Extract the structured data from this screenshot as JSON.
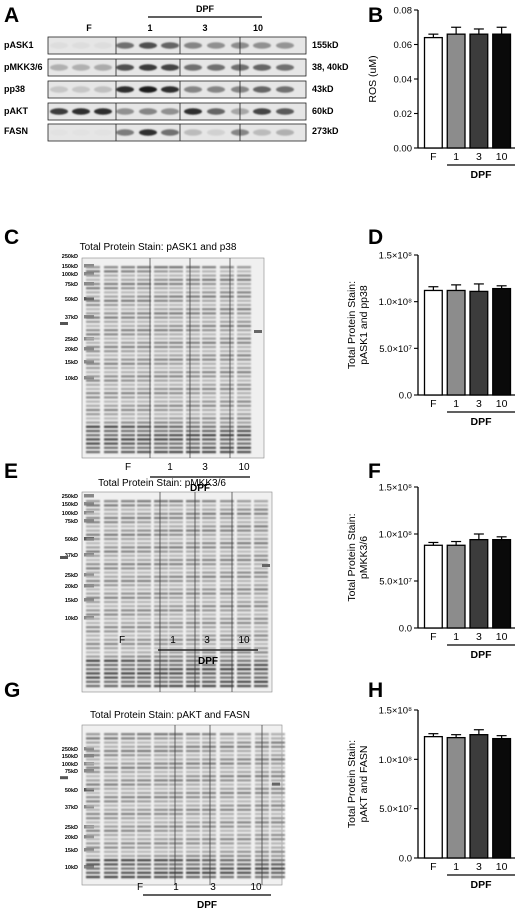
{
  "panel_letters": [
    "A",
    "B",
    "C",
    "D",
    "E",
    "F",
    "G",
    "H"
  ],
  "blot_a": {
    "group_header": "DPF",
    "lane_groups": [
      "F",
      "1",
      "3",
      "10"
    ],
    "rows": [
      {
        "label": "pASK1",
        "size": "155kD"
      },
      {
        "label": "pMKK3/6",
        "size": "38, 40kD"
      },
      {
        "label": "pp38",
        "size": "43kD"
      },
      {
        "label": "pAKT",
        "size": "60kD"
      },
      {
        "label": "FASN",
        "size": "273kD"
      }
    ]
  },
  "gels": [
    {
      "title": "Total Protein Stain: pASK1 and p38",
      "ladder": [
        "250kD",
        "150kD",
        "100kD",
        "75kD",
        "50kD",
        "37kD",
        "25kD",
        "20kD",
        "15kD",
        "10kD"
      ],
      "lane_labels": [
        "F",
        "1",
        "3",
        "10"
      ],
      "group_label": "DPF"
    },
    {
      "title": "Total Protein Stain: pMKK3/6",
      "ladder": [
        "250kD",
        "150kD",
        "100kD",
        "75kD",
        "50kD",
        "37kD",
        "25kD",
        "20kD",
        "15kD",
        "10kD"
      ],
      "lane_labels": [
        "F",
        "1",
        "3",
        "10"
      ],
      "group_label": "DPF"
    },
    {
      "title": "Total Protein Stain: pAKT and FASN",
      "ladder": [
        "250kD",
        "150kD",
        "100kD",
        "75kD",
        "50kD",
        "37kD",
        "25kD",
        "20kD",
        "15kD",
        "10kD"
      ],
      "lane_labels": [
        "F",
        "1",
        "3",
        "10"
      ],
      "group_label": "DPF"
    }
  ],
  "chart_data": [
    {
      "type": "bar",
      "panel": "B",
      "categories": [
        "F",
        "1",
        "3",
        "10"
      ],
      "group_label": "DPF",
      "values": [
        0.064,
        0.066,
        0.066,
        0.066
      ],
      "errors": [
        0.002,
        0.004,
        0.003,
        0.004
      ],
      "ylabel": "ROS (uM)",
      "ylim": [
        0,
        0.08
      ],
      "yticks": [
        "0.00",
        "0.02",
        "0.04",
        "0.06",
        "0.08"
      ],
      "bar_colors": [
        "#ffffff",
        "#8c8c8c",
        "#3c3c3c",
        "#0a0a0a"
      ]
    },
    {
      "type": "bar",
      "panel": "D",
      "categories": [
        "F",
        "1",
        "3",
        "10"
      ],
      "group_label": "DPF",
      "values": [
        112000000,
        112000000,
        111000000,
        114000000
      ],
      "errors": [
        4000000,
        6000000,
        8000000,
        3000000
      ],
      "ylabel": [
        "Total Protein Stain:",
        "pASK1 and pp38"
      ],
      "ylim": [
        0,
        150000000
      ],
      "yticks": [
        "0.0",
        "5.0×10⁷",
        "1.0×10⁸",
        "1.5×10⁸"
      ],
      "bar_colors": [
        "#ffffff",
        "#8c8c8c",
        "#3c3c3c",
        "#0a0a0a"
      ]
    },
    {
      "type": "bar",
      "panel": "F",
      "categories": [
        "F",
        "1",
        "3",
        "10"
      ],
      "group_label": "DPF",
      "values": [
        88000000,
        88000000,
        94000000,
        94000000
      ],
      "errors": [
        3000000,
        4000000,
        6000000,
        3000000
      ],
      "ylabel": [
        "Total Protein Stain:",
        "pMKK3/6"
      ],
      "ylim": [
        0,
        150000000
      ],
      "yticks": [
        "0.0",
        "5.0×10⁷",
        "1.0×10⁸",
        "1.5×10⁸"
      ],
      "bar_colors": [
        "#ffffff",
        "#8c8c8c",
        "#3c3c3c",
        "#0a0a0a"
      ]
    },
    {
      "type": "bar",
      "panel": "H",
      "categories": [
        "F",
        "1",
        "3",
        "10"
      ],
      "group_label": "DPF",
      "values": [
        123000000,
        122000000,
        125000000,
        121000000
      ],
      "errors": [
        3000000,
        3000000,
        5000000,
        3000000
      ],
      "ylabel": [
        "Total Protein Stain:",
        "pAKT and FASN"
      ],
      "ylim": [
        0,
        150000000
      ],
      "yticks": [
        "0.0",
        "5.0×10⁷",
        "1.0×10⁸",
        "1.5×10⁸"
      ],
      "bar_colors": [
        "#ffffff",
        "#8c8c8c",
        "#3c3c3c",
        "#0a0a0a"
      ]
    }
  ]
}
